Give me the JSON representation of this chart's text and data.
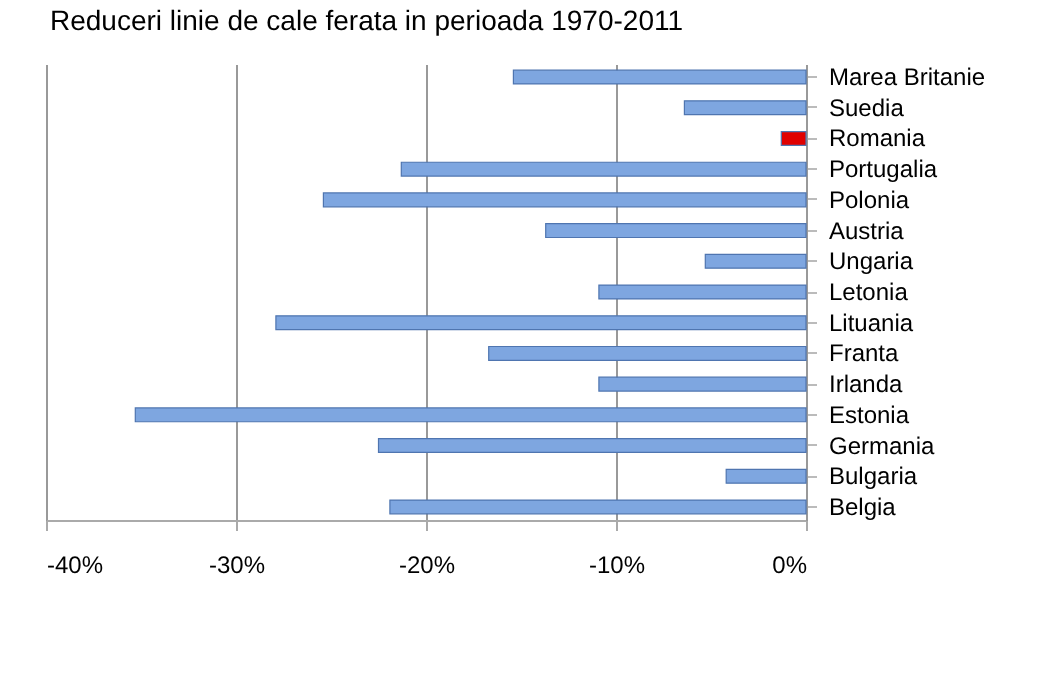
{
  "chart_data": {
    "type": "bar",
    "orientation": "horizontal",
    "title": "Reduceri linie de cale ferata in perioada 1970-2011",
    "categories": [
      "Marea Britanie",
      "Suedia",
      "Romania",
      "Portugalia",
      "Polonia",
      "Austria",
      "Ungaria",
      "Letonia",
      "Lituania",
      "Franta",
      "Irlanda",
      "Estonia",
      "Germania",
      "Bulgaria",
      "Belgia"
    ],
    "values": [
      -15.4,
      -6.4,
      -1.3,
      -21.3,
      -25.4,
      -13.7,
      -5.3,
      -10.9,
      -27.9,
      -16.7,
      -10.9,
      -35.3,
      -22.5,
      -4.2,
      -21.9
    ],
    "colors": [
      "#7ea6e0",
      "#7ea6e0",
      "#e00000",
      "#7ea6e0",
      "#7ea6e0",
      "#7ea6e0",
      "#7ea6e0",
      "#7ea6e0",
      "#7ea6e0",
      "#7ea6e0",
      "#7ea6e0",
      "#7ea6e0",
      "#7ea6e0",
      "#7ea6e0",
      "#7ea6e0"
    ],
    "xlim": [
      -40,
      0
    ],
    "xticks": [
      {
        "value": -40,
        "label": "-40%"
      },
      {
        "value": -30,
        "label": "-30%"
      },
      {
        "value": -20,
        "label": "-20%"
      },
      {
        "value": -10,
        "label": "-10%"
      },
      {
        "value": 0,
        "label": "0%"
      }
    ],
    "grid": "x"
  }
}
